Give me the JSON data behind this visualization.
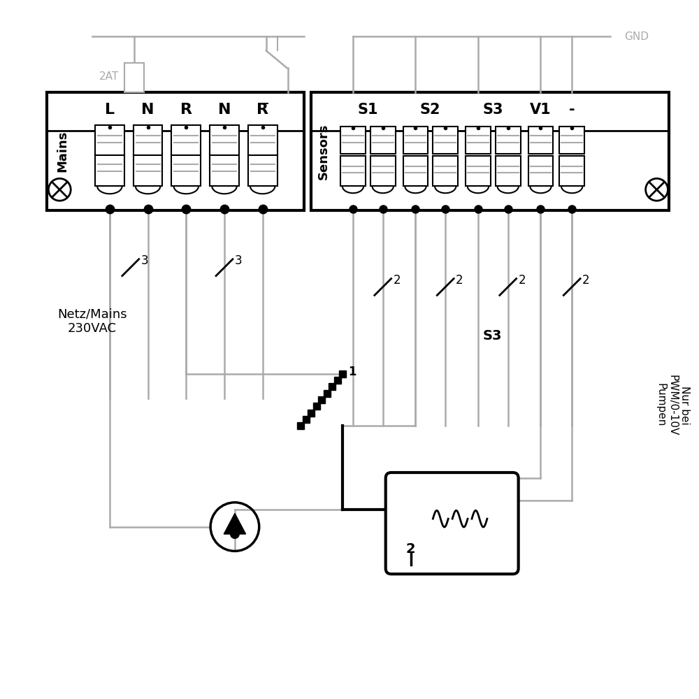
{
  "bg_color": "#ffffff",
  "line_color": "#000000",
  "gray_color": "#aaaaaa",
  "figsize": [
    10,
    10
  ],
  "dpi": 100,
  "mains_labels": [
    "L",
    "N",
    "R",
    "N",
    "R̅"
  ],
  "sensors_labels": [
    "S1",
    "S2",
    "S3",
    "V1",
    "-"
  ],
  "mains_text": "Mains",
  "sensors_text": "Sensors",
  "gnd_text": "GND",
  "label_2at": "2AT",
  "netz_text": "Netz/Mains\n230VAC",
  "s3_text": "S3",
  "nur_bei_text": "Nur bei\nPWM/0-10V\nPumpen",
  "label_1": "1",
  "label_2": "2"
}
